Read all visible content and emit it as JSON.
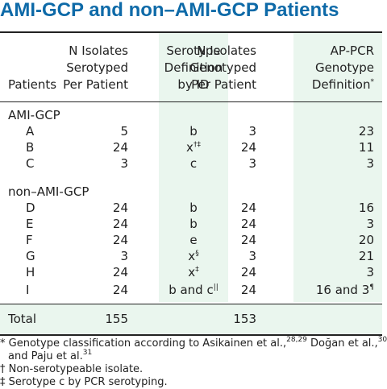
{
  "title": "AMI-GCP and non–AMI-GCP Patients",
  "headers": {
    "patients": "Patients",
    "n_serotyped": [
      "N Isolates",
      "Serotyped",
      "Per Patient"
    ],
    "serotype_def": [
      "Serotype",
      "Definition",
      "by ID"
    ],
    "n_genotyped": [
      "N Isolates",
      "Genotyped",
      "Per Patient"
    ],
    "genotype_def": [
      "AP-PCR",
      "Genotype",
      "Definition"
    ],
    "genotype_def_mark": "*"
  },
  "groups": [
    {
      "label": "AMI-GCP",
      "rows": [
        {
          "patient": "A",
          "n_sero": "5",
          "sero_def": "b",
          "sero_mark": "",
          "n_geno": "3",
          "geno_def": "23",
          "geno_mark": ""
        },
        {
          "patient": "B",
          "n_sero": "24",
          "sero_def": "x",
          "sero_mark": "†‡",
          "n_geno": "24",
          "geno_def": "11",
          "geno_mark": ""
        },
        {
          "patient": "C",
          "n_sero": "3",
          "sero_def": "c",
          "sero_mark": "",
          "n_geno": "3",
          "geno_def": "3",
          "geno_mark": ""
        }
      ]
    },
    {
      "label": "non–AMI-GCP",
      "rows": [
        {
          "patient": "D",
          "n_sero": "24",
          "sero_def": "b",
          "sero_mark": "",
          "n_geno": "24",
          "geno_def": "16",
          "geno_mark": ""
        },
        {
          "patient": "E",
          "n_sero": "24",
          "sero_def": "b",
          "sero_mark": "",
          "n_geno": "24",
          "geno_def": "3",
          "geno_mark": ""
        },
        {
          "patient": "F",
          "n_sero": "24",
          "sero_def": "e",
          "sero_mark": "",
          "n_geno": "24",
          "geno_def": "20",
          "geno_mark": ""
        },
        {
          "patient": "G",
          "n_sero": "3",
          "sero_def": "x",
          "sero_mark": "§",
          "n_geno": "3",
          "geno_def": "21",
          "geno_mark": ""
        },
        {
          "patient": "H",
          "n_sero": "24",
          "sero_def": "x",
          "sero_mark": "‡",
          "n_geno": "24",
          "geno_def": "3",
          "geno_mark": ""
        },
        {
          "patient": "I",
          "n_sero": "24",
          "sero_def": "b and c",
          "sero_mark": "||",
          "n_geno": "24",
          "geno_def": "16 and 3",
          "geno_mark": "¶"
        }
      ]
    }
  ],
  "total": {
    "label": "Total",
    "n_sero": "155",
    "n_geno": "153"
  },
  "footnotes": [
    {
      "mark": "*",
      "text": "Genotype classification according to Asikainen et al.,",
      "sup": "28,29",
      "after": " Doğan et al.,",
      "sup2": "30"
    },
    {
      "mark": "",
      "text": "and Paju et al.",
      "sup": "31",
      "after": "",
      "sup2": ""
    },
    {
      "mark": "†",
      "text": "Non-serotypeable isolate.",
      "sup": "",
      "after": "",
      "sup2": ""
    },
    {
      "mark": "‡",
      "text": "Serotype c by PCR serotyping.",
      "sup": "",
      "after": "",
      "sup2": ""
    }
  ]
}
